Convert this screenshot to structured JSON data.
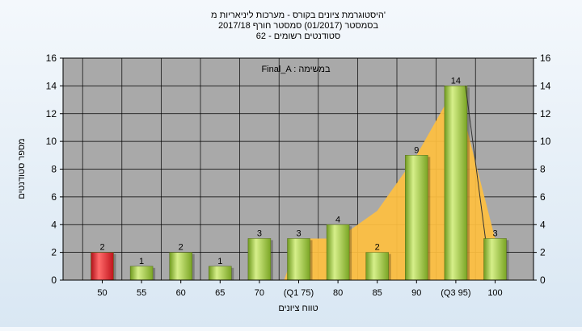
{
  "chart_data": {
    "type": "bar",
    "title_lines": [
      "היסטוגרמת ציונים בקורס - מערכות ליניאריות מ'",
      "בסמסטר  (01/2017)  סמסטר חורף 2017/18",
      "סטודנטים רשומים - 62"
    ],
    "annotation": "Final_A : במשימה",
    "xlabel": "טווח ציונים",
    "ylabel": "מספר סטודנטים",
    "ylim": [
      0,
      16
    ],
    "yticks": [
      0,
      2,
      4,
      6,
      8,
      10,
      12,
      14,
      16
    ],
    "categories": [
      "50",
      "55",
      "60",
      "65",
      "70",
      "(Q1 75)",
      "80",
      "85",
      "90",
      "(Q3 95)",
      "100"
    ],
    "values": [
      2,
      1,
      2,
      1,
      3,
      3,
      4,
      2,
      9,
      14,
      3
    ],
    "highlight_index": 0,
    "cumulative_area": [
      0,
      0,
      0,
      0,
      0,
      3,
      3,
      5,
      9,
      14,
      3
    ],
    "grid": true,
    "colors": {
      "bar": "#9acd32",
      "bar_highlight": "#e8202a",
      "area": "#ffc040",
      "plot_bg": "#a9a9a9",
      "grid": "#000000"
    }
  }
}
